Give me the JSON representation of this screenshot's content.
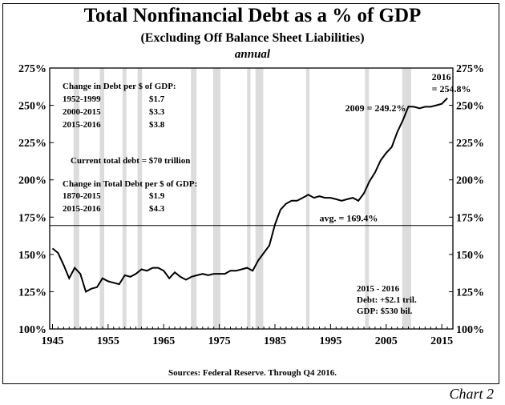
{
  "title": "Total Nonfinancial Debt as a % of GDP",
  "subtitle": "(Excluding Off Balance Sheet Liabilities)",
  "note": "annual",
  "source": "Sources: Federal Reserve. Through Q4 2016.",
  "chart_label": "Chart 2",
  "chart_data": {
    "type": "line",
    "x_ticks": [
      "1945",
      "1955",
      "1965",
      "1975",
      "1985",
      "1995",
      "2005",
      "2015"
    ],
    "y_ticks": [
      "100%",
      "125%",
      "150%",
      "175%",
      "200%",
      "225%",
      "250%",
      "275%"
    ],
    "xlim": [
      1944.5,
      2017
    ],
    "ylim": [
      100,
      275
    ],
    "grid": false,
    "recessions": [
      [
        1948.8,
        1949.8
      ],
      [
        1953.5,
        1954.3
      ],
      [
        1957.6,
        1958.3
      ],
      [
        1960.3,
        1961.1
      ],
      [
        1969.9,
        1970.9
      ],
      [
        1973.9,
        1975.2
      ],
      [
        1980.0,
        1980.6
      ],
      [
        1981.5,
        1982.9
      ],
      [
        1990.6,
        1991.2
      ],
      [
        2001.2,
        2001.9
      ],
      [
        2007.9,
        2009.5
      ]
    ],
    "average": {
      "value": 169.4,
      "label": "avg. = 169.4%"
    },
    "series": [
      {
        "x": [
          1945,
          1946,
          1947,
          1948,
          1949,
          1950,
          1951,
          1952,
          1953,
          1954,
          1955,
          1956,
          1957,
          1958,
          1959,
          1960,
          1961,
          1962,
          1963,
          1964,
          1965,
          1966,
          1967,
          1968,
          1969,
          1970,
          1971,
          1972,
          1973,
          1974,
          1975,
          1976,
          1977,
          1978,
          1979,
          1980,
          1981,
          1982,
          1983,
          1984,
          1985,
          1986,
          1987,
          1988,
          1989,
          1990,
          1991,
          1992,
          1993,
          1994,
          1995,
          1996,
          1997,
          1998,
          1999,
          2000,
          2001,
          2002,
          2003,
          2004,
          2005,
          2006,
          2007,
          2008,
          2009,
          2010,
          2011,
          2012,
          2013,
          2014,
          2015,
          2016
        ],
        "y": [
          154,
          151,
          143,
          134,
          141,
          137,
          125,
          127,
          128,
          134,
          132,
          131,
          130,
          136,
          135,
          137,
          140,
          139,
          141,
          141,
          139,
          134,
          138,
          135,
          133,
          135,
          136,
          137,
          136,
          137,
          137,
          137,
          139,
          139,
          140,
          141,
          139,
          146,
          151,
          156,
          170,
          180,
          184,
          186,
          186,
          188,
          190,
          188,
          189,
          188,
          188,
          187,
          186,
          187,
          188,
          186,
          191,
          199,
          205,
          213,
          218,
          222,
          232,
          240,
          249.2,
          249,
          248,
          249,
          249,
          250,
          251,
          254.8
        ]
      }
    ],
    "annotations": [
      {
        "text": "2009 = 249.2%",
        "x": 2009,
        "y": 249.2
      },
      {
        "text_1": "2016",
        "text_2": "= 254.8%",
        "x": 2016,
        "y": 254.8
      }
    ],
    "notes": {
      "block1_header": "Change in Debt per $ of GDP:",
      "block1_rows": [
        {
          "period": "1952-1999",
          "value": "$1.7"
        },
        {
          "period": "2000-2015",
          "value": "$3.3"
        },
        {
          "period": "2015-2016",
          "value": "$3.8"
        }
      ],
      "current_debt": "Current total debt = $70 trillion",
      "block2_header": "Change in Total Debt per $ of GDP:",
      "block2_rows": [
        {
          "period": "1870-2015",
          "value": "$1.9"
        },
        {
          "period": "2015-2016",
          "value": "$4.3"
        }
      ],
      "recent": [
        "2015 - 2016",
        "Debt:  +$2.1 tril.",
        "GDP:  $530 bil."
      ]
    }
  }
}
